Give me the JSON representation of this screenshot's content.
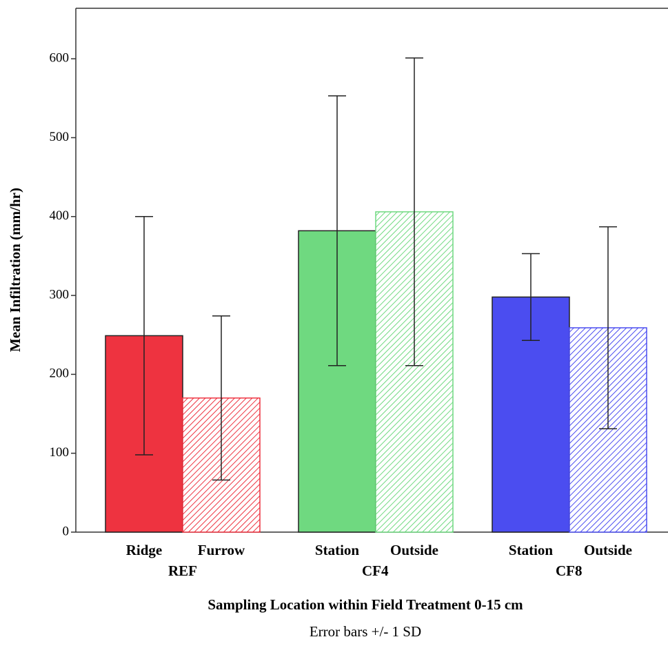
{
  "chart_data": {
    "type": "bar",
    "y_label": "Mean Infiltration (mm/hr)",
    "x_label": "Sampling Location within Field Treatment 0-15 cm",
    "note": "Error bars +/- 1 SD",
    "ylim": [
      0,
      664
    ],
    "yticks": [
      0,
      100,
      200,
      300,
      400,
      500,
      600
    ],
    "groups": [
      {
        "name": "REF",
        "bars": [
          {
            "label": "Ridge",
            "value": 249,
            "error": 151,
            "color": "#ee3340",
            "hatched": false
          },
          {
            "label": "Furrow",
            "value": 170,
            "error": 104,
            "color": "#ee3340",
            "hatched": true
          }
        ]
      },
      {
        "name": "CF4",
        "bars": [
          {
            "label": "Station",
            "value": 382,
            "error": 171,
            "color": "#6fd980",
            "hatched": false
          },
          {
            "label": "Outside",
            "value": 406,
            "error": 195,
            "color": "#6fd980",
            "hatched": true
          }
        ]
      },
      {
        "name": "CF8",
        "bars": [
          {
            "label": "Station",
            "value": 298,
            "error": 55,
            "color": "#4b4df0",
            "hatched": false
          },
          {
            "label": "Outside",
            "value": 259,
            "error": 128,
            "color": "#4b4df0",
            "hatched": true
          }
        ]
      }
    ]
  }
}
